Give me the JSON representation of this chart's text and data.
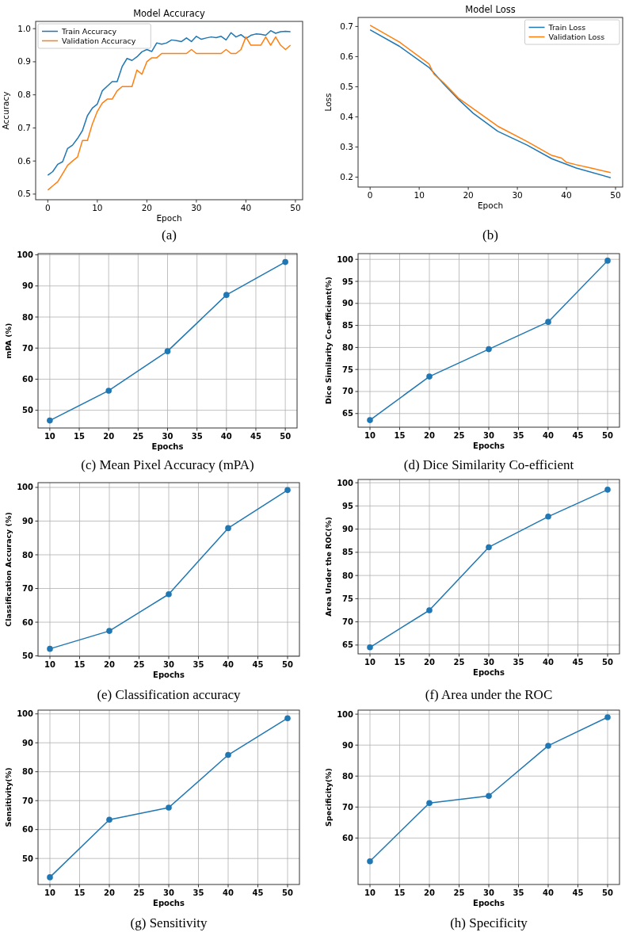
{
  "chart_data": [
    {
      "type": "line",
      "title": "Model Accuracy",
      "xlabel": "Epoch",
      "ylabel": "Accuracy",
      "xlim": [
        -2.45,
        51.45
      ],
      "ylim": [
        0.483,
        1.022
      ],
      "xticks": [
        0,
        10,
        20,
        30,
        40,
        50
      ],
      "yticks": [
        {
          "value": 0.5,
          "label": "0.5"
        },
        {
          "value": 0.6,
          "label": "0.6"
        },
        {
          "value": 0.7,
          "label": "0.7"
        },
        {
          "value": 0.8,
          "label": "0.8"
        },
        {
          "value": 0.9,
          "label": "0.9"
        },
        {
          "value": 1.0,
          "label": "1.0"
        }
      ],
      "legend": "top left",
      "annotations": [
        "(a)"
      ],
      "series": [
        {
          "name": "Train Accuracy",
          "color": "#1f77b4",
          "x": [
            0,
            1,
            2,
            3,
            4,
            5,
            6,
            7,
            8,
            9,
            10,
            11,
            12,
            13,
            14,
            15,
            16,
            17,
            18,
            19,
            20,
            21,
            22,
            23,
            24,
            25,
            26,
            27,
            28,
            29,
            30,
            31,
            32,
            33,
            34,
            35,
            36,
            37,
            38,
            39,
            40,
            41,
            42,
            43,
            44,
            45,
            46,
            47,
            48,
            49
          ],
          "values": [
            0.557,
            0.568,
            0.59,
            0.598,
            0.638,
            0.648,
            0.668,
            0.692,
            0.737,
            0.76,
            0.772,
            0.812,
            0.826,
            0.84,
            0.84,
            0.885,
            0.91,
            0.904,
            0.915,
            0.93,
            0.937,
            0.931,
            0.957,
            0.953,
            0.957,
            0.966,
            0.964,
            0.961,
            0.972,
            0.961,
            0.977,
            0.968,
            0.972,
            0.975,
            0.973,
            0.977,
            0.966,
            0.988,
            0.975,
            0.982,
            0.97,
            0.98,
            0.984,
            0.983,
            0.98,
            0.994,
            0.986,
            0.991,
            0.992,
            0.991
          ]
        },
        {
          "name": "Validation Accuracy",
          "color": "#ff7f0e",
          "x": [
            0,
            1,
            2,
            3,
            4,
            5,
            6,
            7,
            8,
            9,
            10,
            11,
            12,
            13,
            14,
            15,
            16,
            17,
            18,
            19,
            20,
            21,
            22,
            23,
            24,
            25,
            26,
            27,
            28,
            29,
            30,
            31,
            32,
            33,
            34,
            35,
            36,
            37,
            38,
            39,
            40,
            41,
            42,
            43,
            44,
            45,
            46,
            47,
            48,
            49
          ],
          "values": [
            0.512,
            0.525,
            0.537,
            0.562,
            0.587,
            0.6,
            0.612,
            0.662,
            0.662,
            0.712,
            0.75,
            0.775,
            0.787,
            0.787,
            0.812,
            0.825,
            0.825,
            0.825,
            0.875,
            0.862,
            0.9,
            0.912,
            0.912,
            0.925,
            0.925,
            0.925,
            0.925,
            0.925,
            0.925,
            0.937,
            0.925,
            0.925,
            0.925,
            0.925,
            0.925,
            0.925,
            0.937,
            0.925,
            0.925,
            0.937,
            0.975,
            0.95,
            0.95,
            0.95,
            0.975,
            0.95,
            0.975,
            0.95,
            0.937,
            0.95
          ]
        }
      ]
    },
    {
      "type": "line",
      "title": "Model Loss",
      "xlabel": "Epoch",
      "ylabel": "Loss",
      "xlim": [
        -2.45,
        51.45
      ],
      "ylim": [
        0.167,
        0.73
      ],
      "xticks": [
        0,
        10,
        20,
        30,
        40,
        50
      ],
      "yticks": [
        0.2,
        0.3,
        0.4,
        0.5,
        0.6,
        0.7
      ],
      "legend": "top right",
      "annotations": [
        "(b)"
      ],
      "series": [
        {
          "name": "Train Loss",
          "color": "#1f77b4",
          "x": [
            0,
            6,
            12,
            15,
            18,
            21,
            26,
            32,
            37,
            42,
            49
          ],
          "values": [
            0.689,
            0.634,
            0.564,
            0.509,
            0.458,
            0.412,
            0.352,
            0.306,
            0.261,
            0.23,
            0.198
          ]
        },
        {
          "name": "Validation Loss",
          "color": "#ff7f0e",
          "x": [
            0,
            6,
            12,
            13,
            15,
            18,
            26,
            32,
            37,
            39,
            40,
            42,
            45,
            49
          ],
          "values": [
            0.704,
            0.648,
            0.576,
            0.542,
            0.513,
            0.462,
            0.369,
            0.318,
            0.272,
            0.263,
            0.249,
            0.241,
            0.23,
            0.215
          ]
        }
      ]
    },
    {
      "type": "line",
      "xlabel": "Epochs",
      "ylabel": "mPA (%)",
      "x": [
        10,
        20,
        30,
        40,
        50
      ],
      "xlim": [
        8,
        52
      ],
      "ylim": [
        44.3,
        100.4
      ],
      "xticks": [
        10,
        15,
        20,
        25,
        30,
        35,
        40,
        45,
        50
      ],
      "yticks": [
        50,
        60,
        70,
        80,
        90,
        100
      ],
      "grid": true,
      "marker": "circle",
      "annotations": [
        "(c) Mean Pixel Accuracy (mPA)"
      ],
      "series": [
        {
          "color": "#1f77b4",
          "values": [
            46.7,
            56.3,
            69,
            87.1,
            97.7
          ]
        }
      ]
    },
    {
      "type": "line",
      "xlabel": "Epochs",
      "ylabel": "Dice Similarity Co-efficient(%)",
      "x": [
        10,
        20,
        30,
        40,
        50
      ],
      "xlim": [
        8,
        52
      ],
      "ylim": [
        61.9,
        101.3
      ],
      "xticks": [
        10,
        15,
        20,
        25,
        30,
        35,
        40,
        45,
        50
      ],
      "yticks": [
        65,
        70,
        75,
        80,
        85,
        90,
        95,
        100
      ],
      "grid": true,
      "marker": "circle",
      "annotations": [
        "(d) Dice Similarity Co-efficient"
      ],
      "series": [
        {
          "color": "#1f77b4",
          "values": [
            63.5,
            73.4,
            79.6,
            85.8,
            99.7
          ]
        }
      ]
    },
    {
      "type": "line",
      "xlabel": "Epochs",
      "ylabel": "Classification Accuracy (%)",
      "x": [
        10,
        20,
        30,
        40,
        50
      ],
      "xlim": [
        8,
        52
      ],
      "ylim": [
        49.9,
        101.4
      ],
      "xticks": [
        10,
        15,
        20,
        25,
        30,
        35,
        40,
        45,
        50
      ],
      "yticks": [
        50,
        60,
        70,
        80,
        90,
        100
      ],
      "grid": true,
      "marker": "circle",
      "annotations": [
        "(e) Classification accuracy"
      ],
      "series": [
        {
          "color": "#1f77b4",
          "values": [
            52.1,
            57.4,
            68.3,
            87.9,
            99.2
          ]
        }
      ]
    },
    {
      "type": "line",
      "xlabel": "Epochs",
      "ylabel": "Area Under the ROC(%)",
      "x": [
        10,
        20,
        30,
        40,
        50
      ],
      "xlim": [
        8,
        52
      ],
      "ylim": [
        63.1,
        100.7
      ],
      "xticks": [
        10,
        15,
        20,
        25,
        30,
        35,
        40,
        45,
        50
      ],
      "yticks": [
        65,
        70,
        75,
        80,
        85,
        90,
        95,
        100
      ],
      "grid": true,
      "marker": "circle",
      "annotations": [
        "(f) Area under the ROC"
      ],
      "series": [
        {
          "color": "#1f77b4",
          "values": [
            64.5,
            72.5,
            86.1,
            92.7,
            98.5
          ]
        }
      ]
    },
    {
      "type": "line",
      "xlabel": "Epochs",
      "ylabel": "Sensitivity(%)",
      "x": [
        10,
        20,
        30,
        40,
        50
      ],
      "xlim": [
        8,
        52
      ],
      "ylim": [
        41,
        101.3
      ],
      "xticks": [
        10,
        15,
        20,
        25,
        30,
        35,
        40,
        45,
        50
      ],
      "yticks": [
        50,
        60,
        70,
        80,
        90,
        100
      ],
      "grid": true,
      "marker": "circle",
      "annotations": [
        "(g) Sensitivity"
      ],
      "series": [
        {
          "color": "#1f77b4",
          "values": [
            43.5,
            63.4,
            67.6,
            85.8,
            98.5
          ]
        }
      ]
    },
    {
      "type": "line",
      "xlabel": "Epochs",
      "ylabel": "Specificity(%)",
      "x": [
        10,
        20,
        30,
        40,
        50
      ],
      "xlim": [
        8,
        52
      ],
      "ylim": [
        45,
        101.3
      ],
      "xticks": [
        10,
        15,
        20,
        25,
        30,
        35,
        40,
        45,
        50
      ],
      "yticks": [
        60,
        70,
        80,
        90,
        100
      ],
      "grid": true,
      "marker": "circle",
      "annotations": [
        "(h) Specificity"
      ],
      "series": [
        {
          "color": "#1f77b4",
          "values": [
            52.5,
            71.3,
            73.6,
            89.8,
            99
          ]
        }
      ]
    }
  ]
}
